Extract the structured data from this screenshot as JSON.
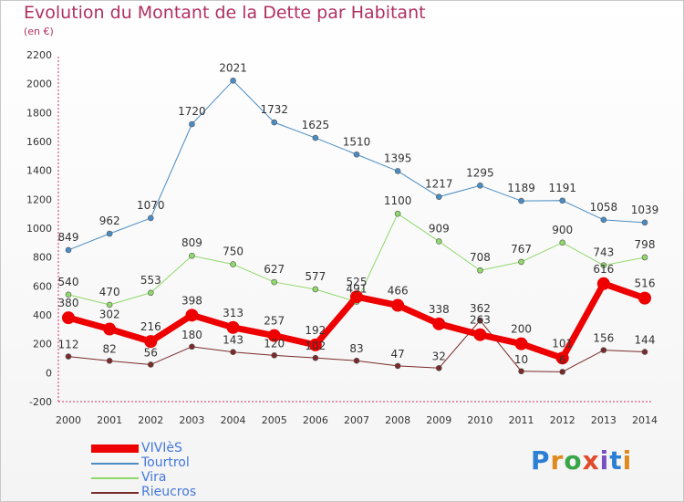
{
  "title": "Evolution du Montant de la Dette par Habitant",
  "subtitle": "(en €)",
  "brand": {
    "text": "Proxiti",
    "colors": [
      "#2b7fd4",
      "#e08a1e",
      "#3aa64a",
      "#e04a2a",
      "#7b4fc4",
      "#2b7fd4",
      "#e08a1e"
    ]
  },
  "chart_data": {
    "type": "line",
    "title": "Evolution du Montant de la Dette par Habitant",
    "subtitle": "(en €)",
    "x": [
      "2000",
      "2001",
      "2002",
      "2003",
      "2004",
      "2005",
      "2006",
      "2007",
      "2008",
      "2009",
      "2010",
      "2011",
      "2012",
      "2013",
      "2014"
    ],
    "ylim": [
      -200,
      2200
    ],
    "yticks": [
      -200,
      0,
      200,
      400,
      600,
      800,
      1000,
      1200,
      1400,
      1600,
      1800,
      2000,
      2200
    ],
    "grid": false,
    "legend_position": "bottom-left",
    "series": [
      {
        "name": "Tourtrol",
        "color": "#4a8cc4",
        "width": 1,
        "values": [
          849,
          962,
          1070,
          1720,
          2021,
          1732,
          1625,
          1510,
          1395,
          1217,
          1295,
          1189,
          1191,
          1058,
          1039
        ]
      },
      {
        "name": "Vira",
        "color": "#8fd86a",
        "width": 1,
        "values": [
          540,
          470,
          553,
          809,
          750,
          627,
          577,
          491,
          1100,
          909,
          708,
          767,
          900,
          743,
          798
        ]
      },
      {
        "name": "Rieucros",
        "color": "#7a2a2a",
        "width": 1,
        "values": [
          112,
          82,
          56,
          180,
          143,
          120,
          102,
          83,
          47,
          32,
          362,
          10,
          6,
          156,
          144
        ]
      },
      {
        "name": "VIVIèS",
        "color": "#ee0000",
        "width": 7,
        "values": [
          380,
          302,
          216,
          398,
          313,
          257,
          192,
          525,
          466,
          338,
          263,
          200,
          101,
          616,
          516
        ]
      }
    ],
    "legend": [
      "VIVIèS",
      "Tourtrol",
      "Vira",
      "Rieucros"
    ]
  }
}
